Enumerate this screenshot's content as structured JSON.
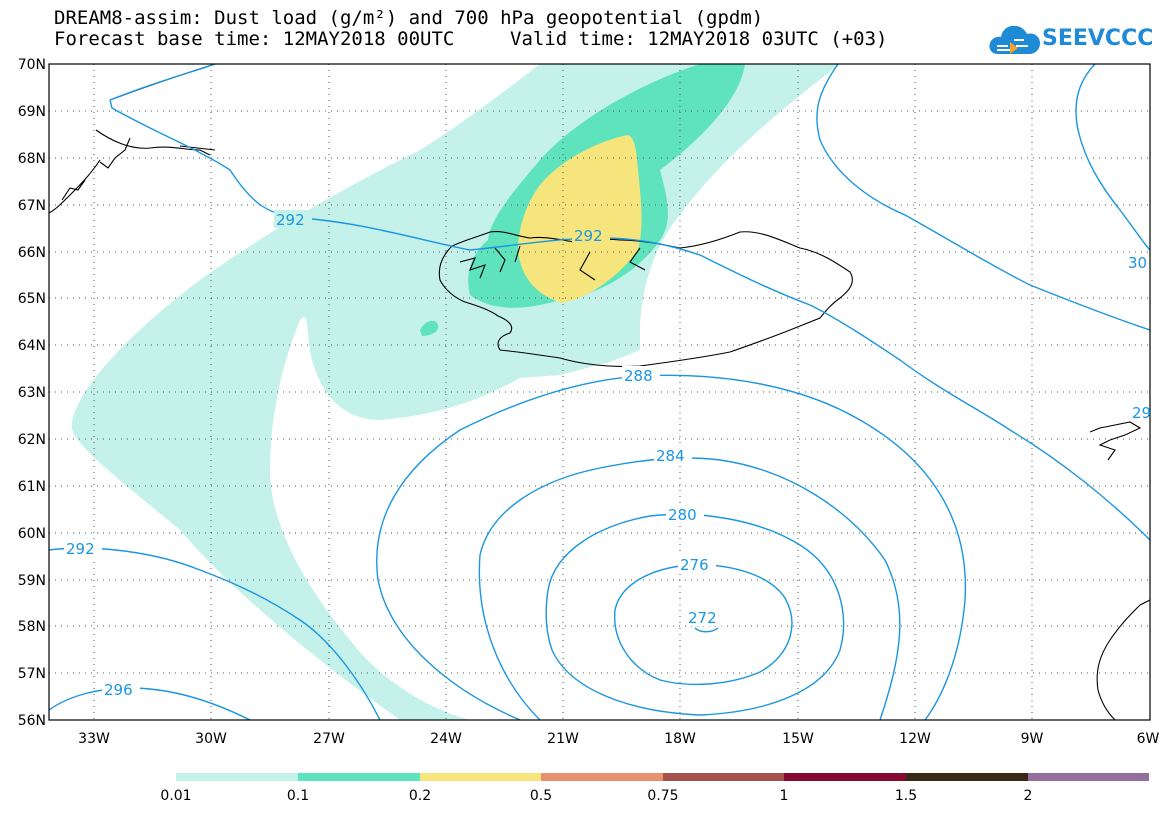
{
  "title": {
    "line1": "DREAM8-assim: Dust load (g/m²) and 700 hPa geopotential (gpdm)",
    "base_time": "Forecast base time: 12MAY2018 00UTC",
    "valid_time": "Valid time: 12MAY2018 03UTC (+03)"
  },
  "logo": {
    "text": "SEEVCCC",
    "icon": "cloud-icon",
    "color": "#1f8ad6"
  },
  "axes": {
    "lat_labels": [
      "70N",
      "69N",
      "68N",
      "67N",
      "66N",
      "65N",
      "64N",
      "63N",
      "62N",
      "61N",
      "60N",
      "59N",
      "58N",
      "57N",
      "56N"
    ],
    "lon_labels": [
      "33W",
      "30W",
      "27W",
      "24W",
      "21W",
      "18W",
      "15W",
      "12W",
      "9W",
      "6W"
    ]
  },
  "contours": {
    "color": "#1a96e0",
    "labels": [
      "292",
      "292",
      "288",
      "284",
      "280",
      "276",
      "272",
      "292",
      "296",
      "30",
      "29"
    ]
  },
  "colorbar": {
    "ticks": [
      "0.01",
      "0.1",
      "0.2",
      "0.5",
      "0.75",
      "1",
      "1.5",
      "2"
    ],
    "colors": [
      "#c4f1ea",
      "#5ee3bd",
      "#f6e57d",
      "#e7916e",
      "#a65350",
      "#860b32",
      "#3a2817",
      "#946f9e"
    ]
  },
  "fills": {
    "c001": "#c4f1ea",
    "c01": "#5ee3bd",
    "c02": "#f6e57d"
  }
}
